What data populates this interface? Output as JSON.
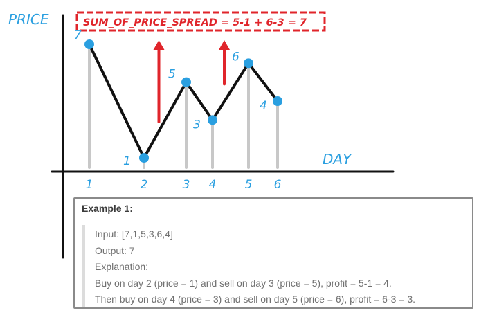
{
  "diagram": {
    "y_axis_label": "PRICE",
    "x_axis_label": "DAY",
    "spread_label": "SUM_OF_PRICE_SPREAD = 5-1 + 6-3 = 7",
    "colors": {
      "axis": "#111111",
      "line": "#111111",
      "point": "#2a9fe0",
      "stem": "#c8c8c8",
      "label": "#2a9fe0",
      "spread": "#e0252b"
    }
  },
  "chart_data": {
    "type": "line",
    "x": [
      1,
      2,
      3,
      4,
      5,
      6
    ],
    "y": [
      7,
      1,
      5,
      3,
      6,
      4
    ],
    "xlabel": "DAY",
    "ylabel": "PRICE",
    "point_labels": [
      "7",
      "1",
      "5",
      "3",
      "6",
      "4"
    ],
    "x_tick_labels": [
      "1",
      "2",
      "3",
      "4",
      "5",
      "6"
    ],
    "profit_arrows": [
      {
        "from_day": 2,
        "to_day": 3
      },
      {
        "from_day": 4,
        "to_day": 5
      }
    ]
  },
  "example": {
    "title": "Example 1:",
    "lines": [
      "Input: [7,1,5,3,6,4]",
      "Output: 7",
      "Explanation:",
      "Buy on day 2 (price = 1) and sell on day 3 (price = 5), profit = 5-1 = 4.",
      "Then buy on day 4 (price = 3) and sell on day 5 (price = 6), profit = 6-3 = 3."
    ]
  }
}
